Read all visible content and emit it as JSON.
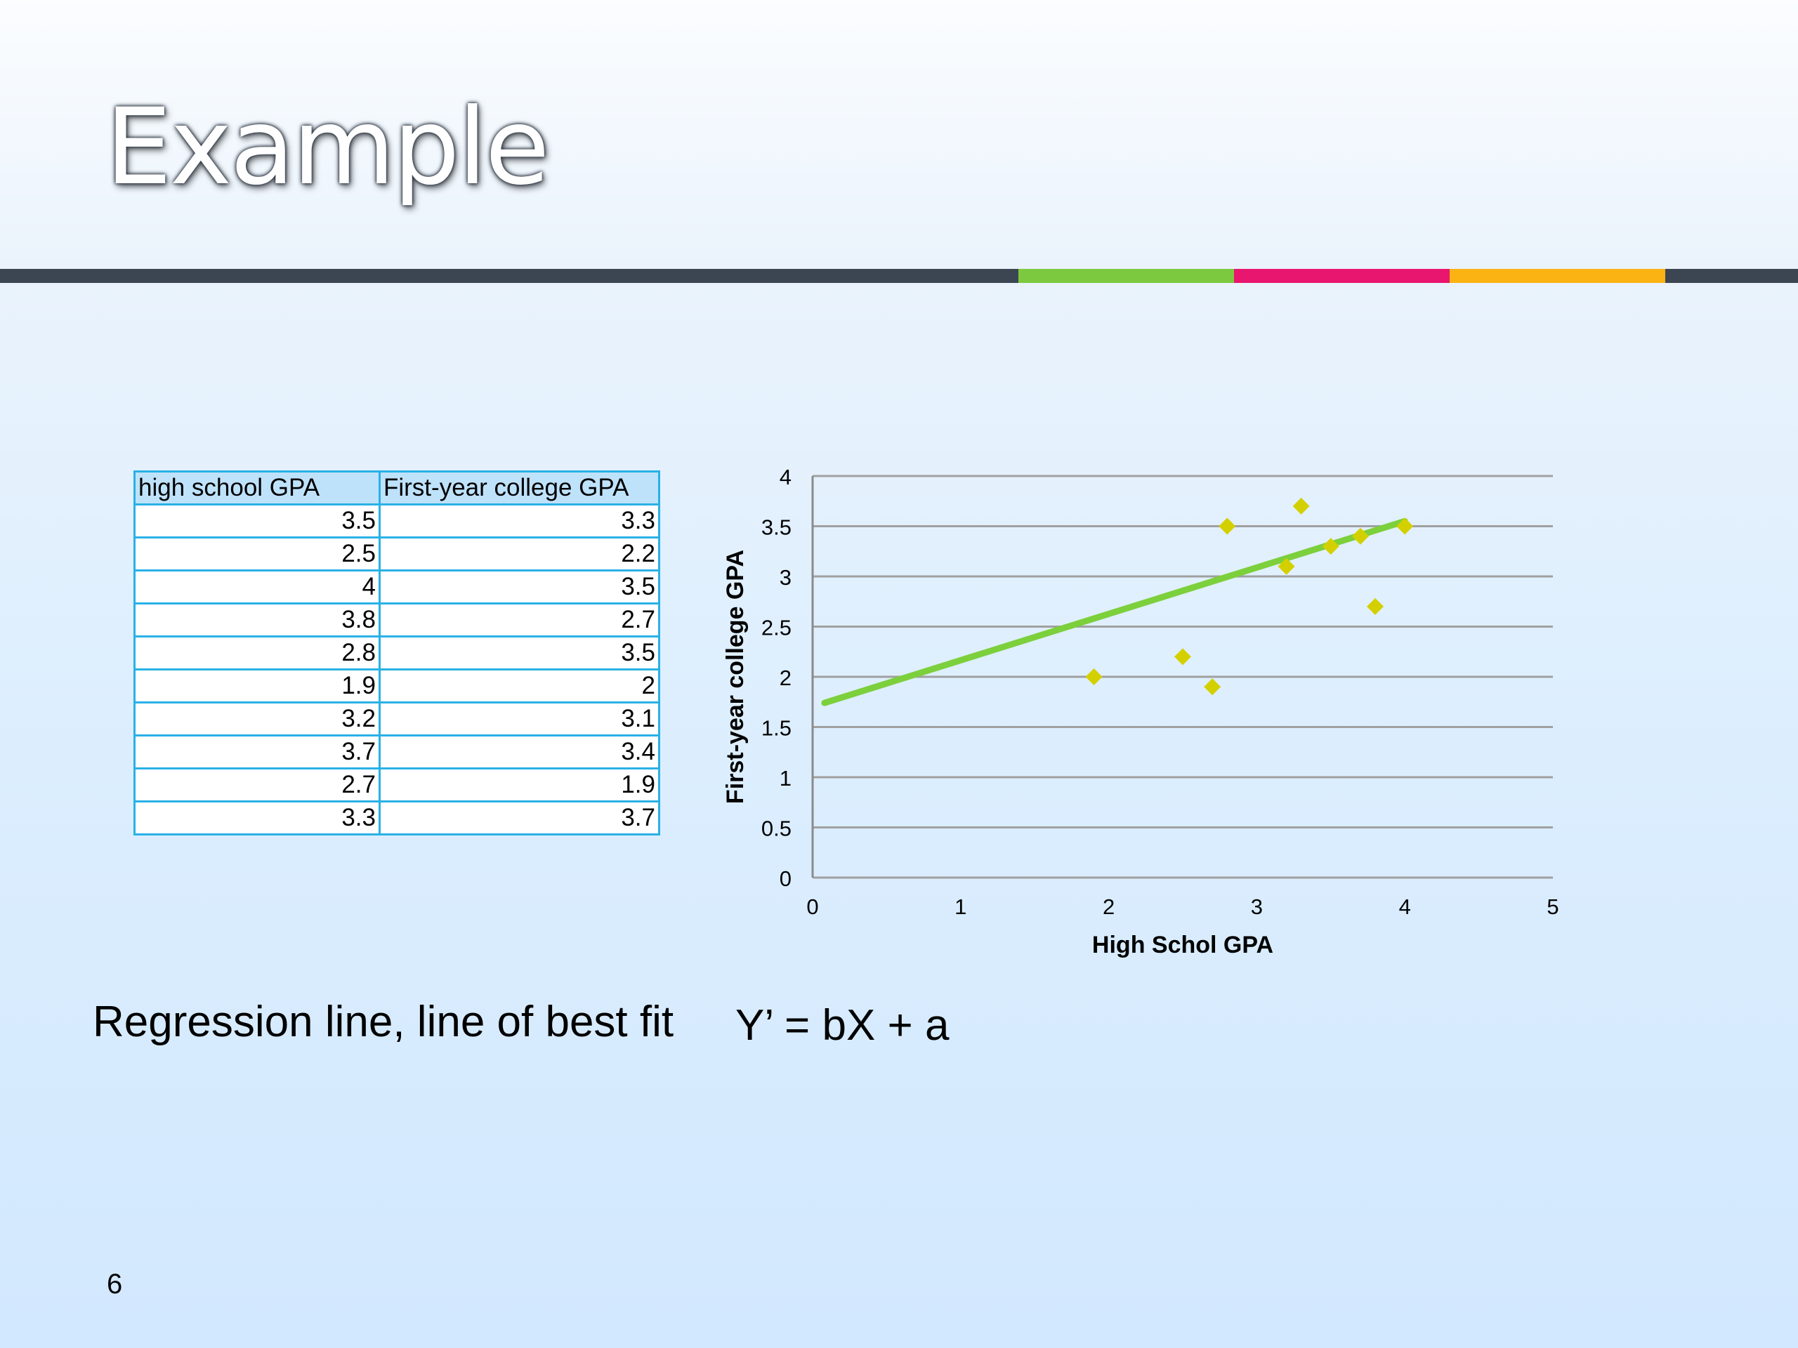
{
  "slide": {
    "title": "Example",
    "caption": "Regression line, line of best fit",
    "equation": "Y’ = bX + a",
    "page_number": "6",
    "rule_colors": [
      "#3c4653",
      "#7cc93f",
      "#e9166f",
      "#fbb213",
      "#3c4653"
    ]
  },
  "table": {
    "headers": [
      "high school GPA",
      "First-year college GPA"
    ],
    "rows": [
      [
        "3.5",
        "3.3"
      ],
      [
        "2.5",
        "2.2"
      ],
      [
        "4",
        "3.5"
      ],
      [
        "3.8",
        "2.7"
      ],
      [
        "2.8",
        "3.5"
      ],
      [
        "1.9",
        "2"
      ],
      [
        "3.2",
        "3.1"
      ],
      [
        "3.7",
        "3.4"
      ],
      [
        "2.7",
        "1.9"
      ],
      [
        "3.3",
        "3.7"
      ]
    ]
  },
  "chart_data": {
    "type": "scatter",
    "xlabel": "High Schol GPA",
    "ylabel": "First-year college GPA",
    "xlim": [
      0,
      5
    ],
    "ylim": [
      0,
      4
    ],
    "x_ticks": [
      "0",
      "1",
      "2",
      "3",
      "4",
      "5"
    ],
    "y_ticks": [
      "0",
      "0.5",
      "1",
      "1.5",
      "2",
      "2.5",
      "3",
      "3.5",
      "4"
    ],
    "grid": true,
    "points": [
      {
        "x": 3.5,
        "y": 3.3
      },
      {
        "x": 2.5,
        "y": 2.2
      },
      {
        "x": 4.0,
        "y": 3.5
      },
      {
        "x": 3.8,
        "y": 2.7
      },
      {
        "x": 2.8,
        "y": 3.5
      },
      {
        "x": 1.9,
        "y": 2.0
      },
      {
        "x": 3.2,
        "y": 3.1
      },
      {
        "x": 3.7,
        "y": 3.4
      },
      {
        "x": 2.7,
        "y": 1.9
      },
      {
        "x": 3.3,
        "y": 3.7
      }
    ],
    "trendline": {
      "x": [
        0.08,
        4.0
      ],
      "y": [
        1.74,
        3.55
      ]
    },
    "marker_color": "#d4d000",
    "trendline_color": "#7cd03c",
    "gridline_color": "#a0a0a0"
  }
}
